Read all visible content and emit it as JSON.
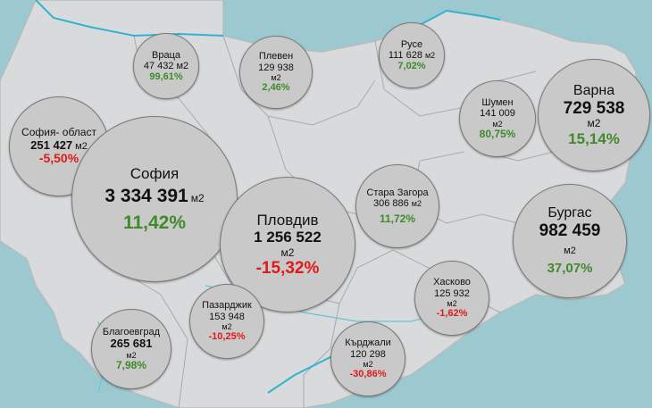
{
  "colors": {
    "sea": "#9cc9d0",
    "land": "#d9dadb",
    "border": "#9aa3a6",
    "river": "#2fb4d0",
    "bubble": "#c9c9c9",
    "positive": "#3f8a2a",
    "negative": "#e01a1a"
  },
  "cities": {
    "vratsa": {
      "name": "Враца",
      "value": "47 432",
      "unit": "м2",
      "change": "99,61%"
    },
    "pleven": {
      "name": "Плевен",
      "value": "129 938",
      "unit": "м2",
      "change": "2,46%"
    },
    "ruse": {
      "name": "Русе",
      "value": "111 628",
      "unit": "м2",
      "change": "7,02%"
    },
    "shumen": {
      "name": "Шумен",
      "value": "141 009",
      "unit": "м2",
      "change": "80,75%"
    },
    "varna": {
      "name": "Варна",
      "value": "729 538",
      "unit": "м2",
      "change": "15,14%"
    },
    "sofia_obl": {
      "name": "София- област",
      "value": "251 427",
      "unit": "м2",
      "change": "-5,50%"
    },
    "sofia": {
      "name": "София",
      "value": "3 334 391",
      "unit": "м2",
      "change": "11,42%"
    },
    "plovdiv": {
      "name": "Пловдив",
      "value": "1 256 522",
      "unit": "м2",
      "change": "-15,32%"
    },
    "stara_zagora": {
      "name": "Стара Загора",
      "value": "306 886",
      "unit": "м2",
      "change": "11,72%"
    },
    "burgas": {
      "name": "Бургас",
      "value": "982 459",
      "unit": "м2",
      "change": "37,07%"
    },
    "pazardzhik": {
      "name": "Пазарджик",
      "value": "153 948",
      "unit": "м2",
      "change": "-10,25%"
    },
    "haskovo": {
      "name": "Хасково",
      "value": "125 932",
      "unit": "м2",
      "change": "-1,62%"
    },
    "blagoevgrad": {
      "name": "Благоевград",
      "value": "265 681",
      "unit": "м2",
      "change": "7,98%"
    },
    "kardzhali": {
      "name": "Кърджали",
      "value": "120 298",
      "unit": "м2",
      "change": "-30,86%"
    }
  }
}
